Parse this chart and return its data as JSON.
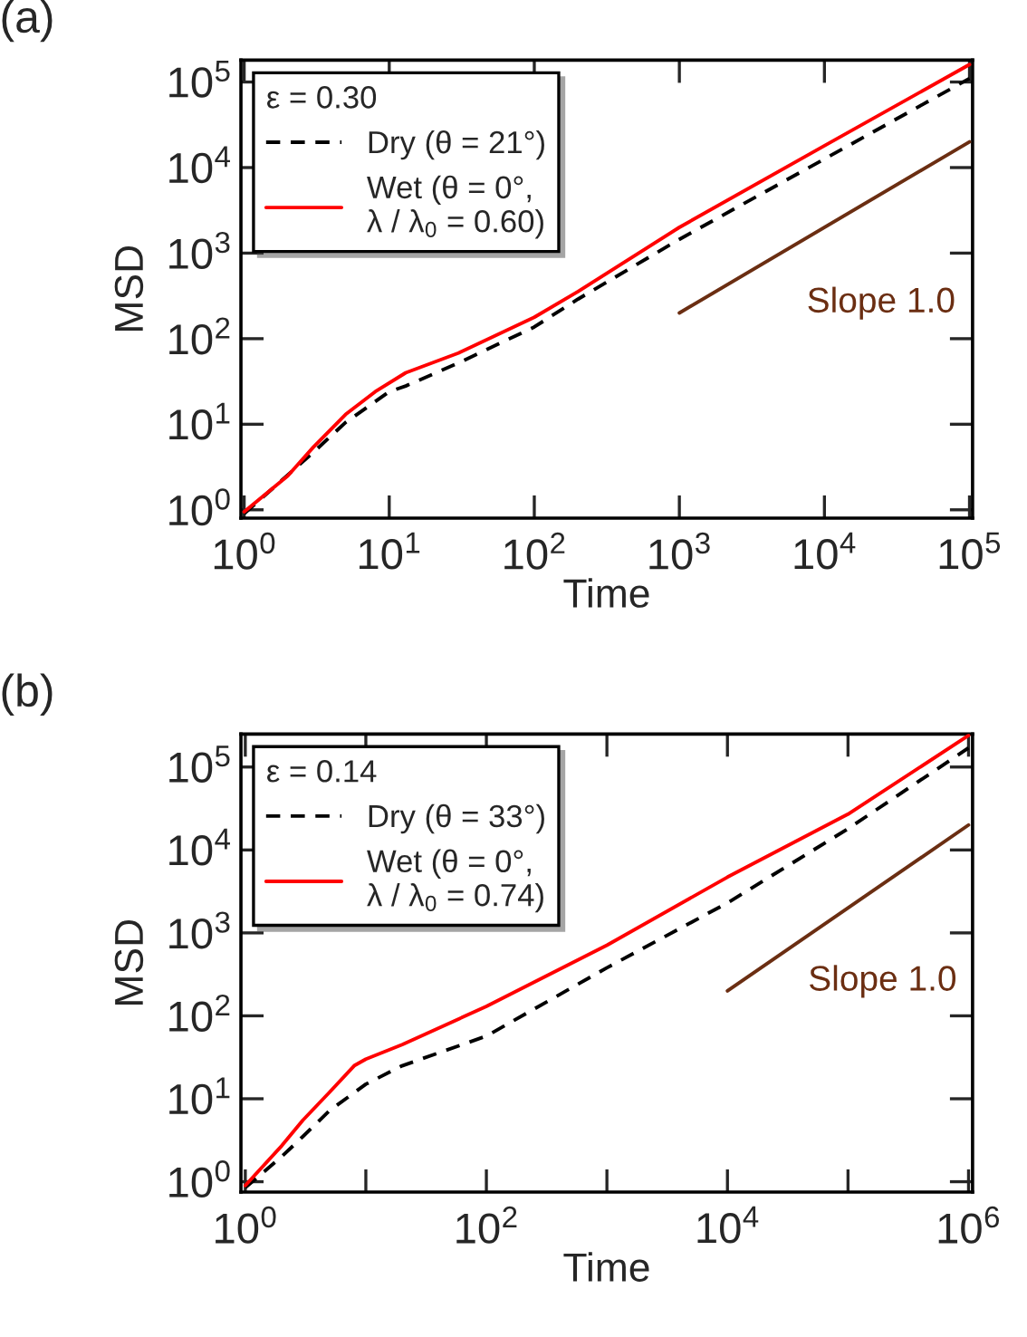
{
  "chart_data": [
    {
      "type": "line",
      "title": "(a)",
      "xlabel": "Time",
      "ylabel": "MSD",
      "log": "xy",
      "grid": false,
      "legend": "top left",
      "marker": "none",
      "legend_title": "ε = 0.30",
      "xlim": [
        0.95,
        105000
      ],
      "ylim": [
        0.8,
        180000
      ],
      "xticks": [
        {
          "value": 1,
          "label": "10$^{0}$"
        },
        {
          "value": 10,
          "label": "10$^{1}$"
        },
        {
          "value": 100,
          "label": "10$^{2}$"
        },
        {
          "value": 1000,
          "label": "10$^{3}$"
        },
        {
          "value": 10000,
          "label": "10$^{4}$"
        },
        {
          "value": 100000,
          "label": "10$^{5}$"
        }
      ],
      "yticks": [
        {
          "value": 1,
          "label": "10$^{0}$"
        },
        {
          "value": 10,
          "label": "10$^{1}$"
        },
        {
          "value": 100,
          "label": "10$^{2}$"
        },
        {
          "value": 1000,
          "label": "10$^{3}$"
        },
        {
          "value": 10000,
          "label": "10$^{4}$"
        },
        {
          "value": 100000,
          "label": "10$^{5}$"
        }
      ],
      "series": [
        {
          "name": "Dry (θ = 21°)",
          "color": "#000000",
          "line_style": "dashed",
          "x": [
            1,
            3,
            5,
            10,
            13,
            30,
            100,
            200,
            1000,
            10000,
            100000
          ],
          "values": [
            0.9,
            4.7,
            10.5,
            24,
            28,
            52,
            137,
            290,
            1450,
            12600,
            110000
          ]
        },
        {
          "name": "Wet (θ = 0°,\nλ / λ$_{0}$ = 0.60)",
          "color": "#ff0000",
          "line_style": "solid",
          "x": [
            1,
            2,
            3,
            5,
            8,
            13,
            30,
            100,
            200,
            1000,
            10000,
            100000
          ],
          "values": [
            0.95,
            2.5,
            5.4,
            13,
            24,
            40,
            68,
            178,
            355,
            2000,
            18000,
            160000
          ]
        },
        {
          "name": "Slope 1.0",
          "color": "#6b2e12",
          "line_style": "solid",
          "x": [
            1000,
            100000
          ],
          "values": [
            200,
            20000
          ]
        }
      ]
    },
    {
      "type": "line",
      "title": "(b)",
      "xlabel": "Time",
      "ylabel": "MSD",
      "log": "xy",
      "grid": false,
      "legend": "top left",
      "marker": "none",
      "legend_title": "ε = 0.14",
      "xlim": [
        0.92,
        1080000
      ],
      "ylim": [
        0.75,
        250000
      ],
      "xticks": [
        {
          "value": 1,
          "label": "10$^{0}$"
        },
        {
          "value": 10,
          "label": null
        },
        {
          "value": 100,
          "label": "10$^{2}$"
        },
        {
          "value": 1000,
          "label": null
        },
        {
          "value": 10000,
          "label": "10$^{4}$"
        },
        {
          "value": 100000,
          "label": null
        },
        {
          "value": 1000000,
          "label": "10$^{6}$"
        }
      ],
      "yticks": [
        {
          "value": 1,
          "label": "10$^{0}$"
        },
        {
          "value": 10,
          "label": "10$^{1}$"
        },
        {
          "value": 100,
          "label": "10$^{2}$"
        },
        {
          "value": 1000,
          "label": "10$^{3}$"
        },
        {
          "value": 10000,
          "label": "10$^{4}$"
        },
        {
          "value": 100000,
          "label": "10$^{5}$"
        }
      ],
      "series": [
        {
          "name": "Dry (θ = 33°)",
          "color": "#000000",
          "line_style": "dashed",
          "x": [
            1,
            2,
            3,
            5,
            10,
            20,
            100,
            1000,
            10000,
            100000,
            1000000
          ],
          "values": [
            0.85,
            2.0,
            3.5,
            7.2,
            15,
            25,
            57,
            380,
            2300,
            18000,
            170000
          ]
        },
        {
          "name": "Wet (θ = 0°,\nλ / λ$_{0}$ = 0.74)",
          "color": "#ff0000",
          "line_style": "solid",
          "x": [
            1,
            2,
            3,
            5,
            8,
            10,
            20,
            100,
            1000,
            10000,
            100000,
            1000000
          ],
          "values": [
            0.9,
            2.7,
            5.5,
            12,
            25,
            30,
            45,
            130,
            710,
            4700,
            27000,
            240000
          ]
        },
        {
          "name": "Slope 1.0",
          "color": "#6b2e12",
          "line_style": "solid",
          "x": [
            10000,
            1000000
          ],
          "values": [
            200,
            20000
          ]
        }
      ]
    }
  ]
}
